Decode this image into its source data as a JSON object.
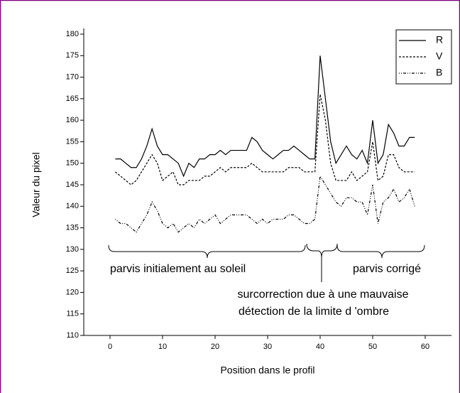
{
  "chart_data": {
    "type": "line",
    "xlabel": "Position dans le profil",
    "ylabel": "Valeur du pixel",
    "x": [
      1,
      2,
      3,
      4,
      5,
      6,
      7,
      8,
      9,
      10,
      11,
      12,
      13,
      14,
      15,
      16,
      17,
      18,
      19,
      20,
      21,
      22,
      23,
      24,
      25,
      26,
      27,
      28,
      29,
      30,
      31,
      32,
      33,
      34,
      35,
      36,
      37,
      38,
      39,
      40,
      41,
      42,
      43,
      44,
      45,
      46,
      47,
      48,
      49,
      50,
      51,
      52,
      53,
      54,
      55,
      56,
      57,
      58
    ],
    "series": [
      {
        "name": "R",
        "color": "#000000",
        "style": "solid",
        "values": [
          151,
          151,
          150,
          149,
          149,
          151,
          154,
          158,
          154,
          152,
          152,
          151,
          150,
          147,
          150,
          149,
          151,
          151,
          152,
          152,
          153,
          152,
          153,
          153,
          153,
          153,
          156,
          155,
          153,
          152,
          151,
          152,
          153,
          153,
          154,
          153,
          152,
          151,
          151,
          175,
          165,
          155,
          150,
          152,
          154,
          152,
          151,
          153,
          150,
          160,
          150,
          152,
          159,
          157,
          154,
          154,
          156,
          156
        ]
      },
      {
        "name": "V",
        "color": "#000000",
        "style": "dash",
        "values": [
          148,
          147,
          146,
          145,
          146,
          148,
          150,
          152,
          150,
          146,
          147,
          148,
          145,
          145,
          146,
          146,
          146,
          147,
          147,
          148,
          149,
          148,
          149,
          149,
          149,
          149,
          150,
          149,
          148,
          148,
          148,
          148,
          148,
          149,
          149,
          149,
          148,
          148,
          148,
          166,
          160,
          150,
          146,
          146,
          146,
          148,
          146,
          147,
          148,
          155,
          146,
          147,
          152,
          152,
          149,
          148,
          148,
          148
        ]
      },
      {
        "name": "B",
        "color": "#000000",
        "style": "dashdot",
        "values": [
          137,
          136,
          136,
          135,
          134,
          136,
          138,
          141,
          139,
          136,
          135,
          136,
          134,
          135,
          136,
          135,
          137,
          136,
          137,
          138,
          136,
          137,
          138,
          138,
          138,
          138,
          137,
          136,
          137,
          136,
          137,
          137,
          137,
          138,
          138,
          137,
          136,
          136,
          137,
          147,
          145,
          143,
          141,
          140,
          142,
          142,
          141,
          141,
          138,
          145,
          136,
          141,
          142,
          144,
          141,
          142,
          144,
          140
        ]
      }
    ],
    "xlim": [
      -5,
      65
    ],
    "xticks": [
      0,
      10,
      20,
      30,
      40,
      50,
      60
    ],
    "ylim": [
      110,
      180
    ],
    "yticks": [
      110,
      115,
      120,
      125,
      130,
      135,
      140,
      145,
      150,
      155,
      160,
      165,
      170,
      175,
      180
    ],
    "legend": "upper right",
    "annotations": [
      "parvis initialement au soleil",
      "surcorrection due à une mauvaise",
      "détection de la limite d 'ombre",
      "parvis corrigé"
    ]
  }
}
